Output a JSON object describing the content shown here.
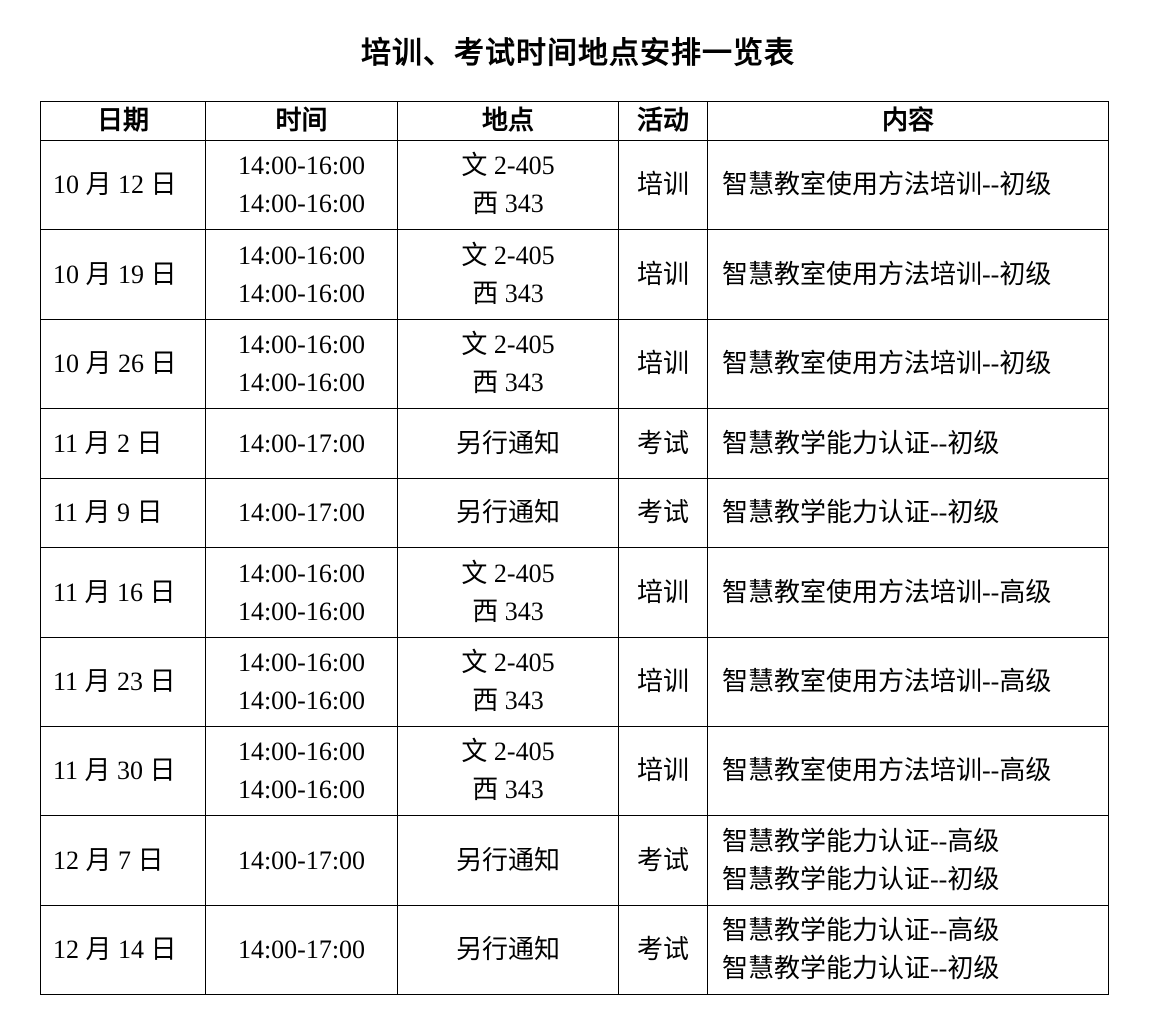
{
  "title": "培训、考试时间地点安排一览表",
  "headers": [
    "日期",
    "时间",
    "地点",
    "活动",
    "内容"
  ],
  "rows": [
    {
      "date": "10 月 12 日",
      "time": [
        "14:00-16:00",
        "14:00-16:00"
      ],
      "place": [
        "文 2-405",
        "西 343"
      ],
      "activity": "培训",
      "content": [
        "智慧教室使用方法培训--初级"
      ]
    },
    {
      "date": "10 月 19 日",
      "time": [
        "14:00-16:00",
        "14:00-16:00"
      ],
      "place": [
        "文 2-405",
        "西 343"
      ],
      "activity": "培训",
      "content": [
        "智慧教室使用方法培训--初级"
      ]
    },
    {
      "date": "10 月 26 日",
      "time": [
        "14:00-16:00",
        "14:00-16:00"
      ],
      "place": [
        "文 2-405",
        "西 343"
      ],
      "activity": "培训",
      "content": [
        "智慧教室使用方法培训--初级"
      ]
    },
    {
      "date": "11 月 2 日",
      "time": [
        "14:00-17:00"
      ],
      "place": [
        "另行通知"
      ],
      "activity": "考试",
      "content": [
        "智慧教学能力认证--初级"
      ]
    },
    {
      "date": "11 月 9 日",
      "time": [
        "14:00-17:00"
      ],
      "place": [
        "另行通知"
      ],
      "activity": "考试",
      "content": [
        "智慧教学能力认证--初级"
      ]
    },
    {
      "date": "11 月 16 日",
      "time": [
        "14:00-16:00",
        "14:00-16:00"
      ],
      "place": [
        "文 2-405",
        "西 343"
      ],
      "activity": "培训",
      "content": [
        "智慧教室使用方法培训--高级"
      ]
    },
    {
      "date": "11 月 23 日",
      "time": [
        "14:00-16:00",
        "14:00-16:00"
      ],
      "place": [
        "文 2-405",
        "西 343"
      ],
      "activity": "培训",
      "content": [
        "智慧教室使用方法培训--高级"
      ]
    },
    {
      "date": "11 月 30 日",
      "time": [
        "14:00-16:00",
        "14:00-16:00"
      ],
      "place": [
        "文 2-405",
        "西 343"
      ],
      "activity": "培训",
      "content": [
        "智慧教室使用方法培训--高级"
      ]
    },
    {
      "date": "12 月 7 日",
      "time": [
        "14:00-17:00"
      ],
      "place": [
        "另行通知"
      ],
      "activity": "考试",
      "content": [
        "智慧教学能力认证--高级",
        "智慧教学能力认证--初级"
      ]
    },
    {
      "date": "12 月 14 日",
      "time": [
        "14:00-17:00"
      ],
      "place": [
        "另行通知"
      ],
      "activity": "考试",
      "content": [
        "智慧教学能力认证--高级",
        "智慧教学能力认证--初级"
      ]
    }
  ]
}
